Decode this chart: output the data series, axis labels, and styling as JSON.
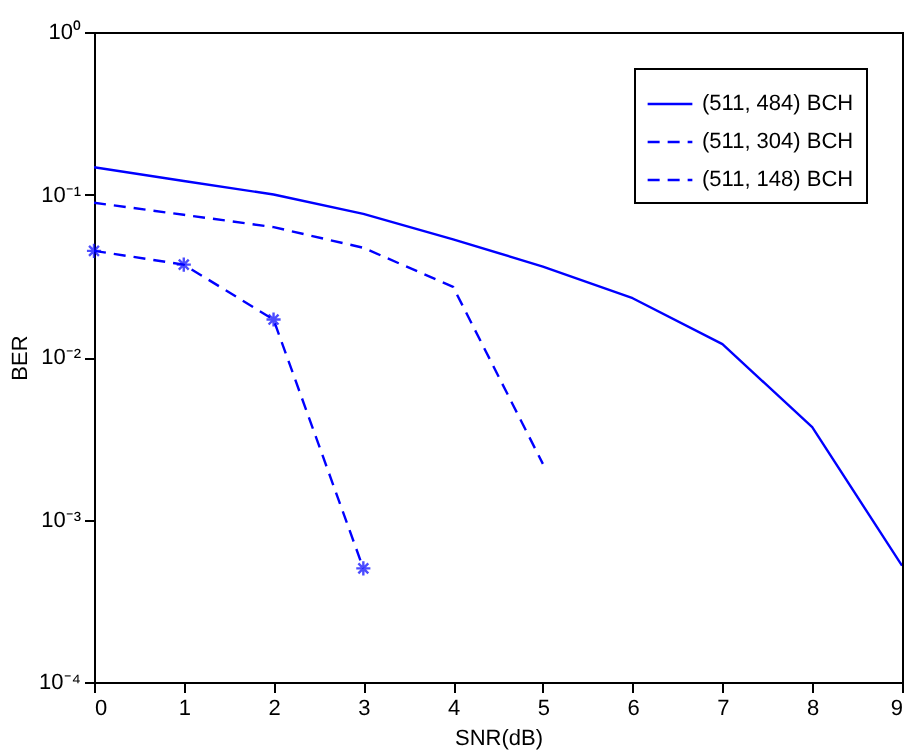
{
  "chart_data": {
    "type": "line",
    "xlabel": "SNR(dB)",
    "ylabel": "BER",
    "x": [
      0,
      1,
      2,
      3,
      4,
      5,
      6,
      7,
      8,
      9
    ],
    "series": [
      {
        "name": "(511, 484) BCH",
        "color": "#0000ff",
        "line_style": "solid",
        "marker": "none",
        "values": [
          0.147,
          0.121,
          0.1,
          0.076,
          0.053,
          0.036,
          0.023,
          0.012,
          0.0037,
          0.00052
        ]
      },
      {
        "name": "(511, 304) BCH",
        "color": "#0000ff",
        "line_style": "dashed",
        "marker": "none",
        "values": [
          0.089,
          0.075,
          0.063,
          0.047,
          0.027,
          0.0022,
          null,
          null,
          null,
          null
        ]
      },
      {
        "name": "(511, 148) BCH",
        "color": "#0000ff",
        "line_style": "dashed",
        "marker": "cross",
        "values": [
          0.045,
          0.037,
          0.017,
          0.0005,
          null,
          null,
          null,
          null,
          null,
          null
        ]
      }
    ],
    "log": "y",
    "xlim": [
      0,
      9
    ],
    "xticks": [
      0,
      1,
      2,
      3,
      4,
      5,
      6,
      7,
      8,
      9
    ],
    "ylim": [
      0.0001,
      1
    ],
    "yticks": [
      {
        "value": 0.0001,
        "label": "10⁻⁴"
      },
      {
        "value": 0.001,
        "label": "10⁻³"
      },
      {
        "value": 0.01,
        "label": "10⁻²"
      },
      {
        "value": 0.1,
        "label": "10⁻¹"
      },
      {
        "value": 1,
        "label": "10⁰"
      }
    ],
    "grid": false,
    "legend": "top right"
  }
}
